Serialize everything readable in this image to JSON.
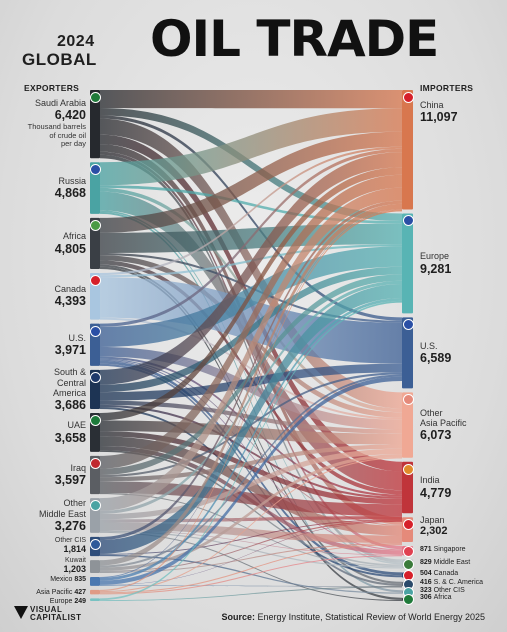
{
  "title": {
    "year": "2024",
    "global": "GLOBAL",
    "main": "OIL TRADE"
  },
  "columns": {
    "exporters": "EXPORTERS",
    "importers": "IMPORTERS"
  },
  "unit_note": "Thousand barrels of crude oil per day",
  "exporters": [
    {
      "name": "Saudi Arabia",
      "value": "6,420",
      "num": 6420,
      "color": "#26292e"
    },
    {
      "name": "Russia",
      "value": "4,868",
      "num": 4868,
      "color": "#4aa3a3"
    },
    {
      "name": "Africa",
      "value": "4,805",
      "num": 4805,
      "color": "#3a3f45"
    },
    {
      "name": "Canada",
      "value": "4,393",
      "num": 4393,
      "color": "#a9c6e0"
    },
    {
      "name": "U.S.",
      "value": "3,971",
      "num": 3971,
      "color": "#3c5f95"
    },
    {
      "name": "South & Central America",
      "value": "3,686",
      "num": 3686,
      "color": "#1d3454"
    },
    {
      "name": "UAE",
      "value": "3,658",
      "num": 3658,
      "color": "#2a2f35"
    },
    {
      "name": "Iraq",
      "value": "3,597",
      "num": 3597,
      "color": "#5b5e63"
    },
    {
      "name": "Other Middle East",
      "value": "3,276",
      "num": 3276,
      "color": "#9aa1a8"
    },
    {
      "name": "Other CIS",
      "value": "1,814",
      "num": 1814,
      "color": "#2e4d7a"
    },
    {
      "name": "Kuwait",
      "value": "1,203",
      "num": 1203,
      "color": "#8e9398"
    },
    {
      "name": "Mexico",
      "value": "835",
      "num": 835,
      "color": "#4a78b0"
    },
    {
      "name": "Asia Pacific",
      "value": "427",
      "num": 427,
      "color": "#e09a85"
    },
    {
      "name": "Europe",
      "value": "249",
      "num": 249,
      "color": "#78c2c2"
    }
  ],
  "importers": [
    {
      "name": "China",
      "value": "11,097",
      "num": 11097,
      "color": "#d8774e"
    },
    {
      "name": "Europe",
      "value": "9,281",
      "num": 9281,
      "color": "#58b4b4"
    },
    {
      "name": "U.S.",
      "value": "6,589",
      "num": 6589,
      "color": "#3c5f95"
    },
    {
      "name": "Other Asia Pacific",
      "value": "6,073",
      "num": 6073,
      "color": "#f0a894"
    },
    {
      "name": "India",
      "value": "4,779",
      "num": 4779,
      "color": "#c0343a"
    },
    {
      "name": "Japan",
      "value": "2,302",
      "num": 2302,
      "color": "#e58a7a"
    },
    {
      "name": "Singapore",
      "value": "871",
      "num": 871,
      "color": "#e7788a"
    },
    {
      "name": "Middle East",
      "value": "829",
      "num": 829,
      "color": "#b9c2c8"
    },
    {
      "name": "Canada",
      "value": "504",
      "num": 504,
      "color": "#2e4d7a"
    },
    {
      "name": "S. & C. America",
      "value": "416",
      "num": 416,
      "color": "#6a7078"
    },
    {
      "name": "Other CIS",
      "value": "323",
      "num": 323,
      "color": "#8a9aa8"
    },
    {
      "name": "Africa",
      "value": "306",
      "num": 306,
      "color": "#3a3f45"
    }
  ],
  "flows": [
    [
      0,
      0,
      1700
    ],
    [
      0,
      1,
      700
    ],
    [
      0,
      3,
      1500
    ],
    [
      0,
      4,
      900
    ],
    [
      0,
      5,
      700
    ],
    [
      0,
      2,
      300
    ],
    [
      0,
      6,
      300
    ],
    [
      0,
      7,
      320
    ],
    [
      1,
      0,
      2170
    ],
    [
      1,
      4,
      1750
    ],
    [
      1,
      1,
      250
    ],
    [
      1,
      3,
      350
    ],
    [
      1,
      10,
      198
    ],
    [
      1,
      7,
      150
    ],
    [
      2,
      1,
      1900
    ],
    [
      2,
      0,
      1400
    ],
    [
      2,
      4,
      400
    ],
    [
      2,
      3,
      500
    ],
    [
      2,
      2,
      200
    ],
    [
      2,
      11,
      205
    ],
    [
      2,
      9,
      200
    ],
    [
      3,
      2,
      3800
    ],
    [
      3,
      0,
      200
    ],
    [
      3,
      1,
      200
    ],
    [
      3,
      3,
      193
    ],
    [
      4,
      1,
      1900
    ],
    [
      4,
      3,
      900
    ],
    [
      4,
      0,
      300
    ],
    [
      4,
      4,
      200
    ],
    [
      4,
      5,
      100
    ],
    [
      4,
      8,
      271
    ],
    [
      4,
      9,
      200
    ],
    [
      4,
      6,
      100
    ],
    [
      5,
      0,
      1400
    ],
    [
      5,
      2,
      800
    ],
    [
      5,
      1,
      700
    ],
    [
      5,
      3,
      400
    ],
    [
      5,
      4,
      200
    ],
    [
      5,
      8,
      186
    ],
    [
      6,
      0,
      700
    ],
    [
      6,
      5,
      900
    ],
    [
      6,
      3,
      1000
    ],
    [
      6,
      4,
      500
    ],
    [
      6,
      6,
      400
    ],
    [
      6,
      7,
      158
    ],
    [
      7,
      0,
      1200
    ],
    [
      7,
      4,
      1100
    ],
    [
      7,
      1,
      600
    ],
    [
      7,
      3,
      397
    ],
    [
      7,
      2,
      200
    ],
    [
      7,
      7,
      100
    ],
    [
      8,
      0,
      1200
    ],
    [
      8,
      5,
      700
    ],
    [
      8,
      3,
      500
    ],
    [
      8,
      4,
      300
    ],
    [
      8,
      1,
      300
    ],
    [
      8,
      7,
      121
    ],
    [
      8,
      11,
      101
    ],
    [
      8,
      6,
      55
    ],
    [
      9,
      1,
      1300
    ],
    [
      9,
      0,
      300
    ],
    [
      9,
      10,
      125
    ],
    [
      9,
      4,
      89
    ],
    [
      10,
      0,
      500
    ],
    [
      10,
      3,
      301
    ],
    [
      10,
      2,
      200
    ],
    [
      10,
      4,
      100
    ],
    [
      10,
      5,
      102
    ],
    [
      11,
      2,
      400
    ],
    [
      11,
      1,
      270
    ],
    [
      11,
      0,
      80
    ],
    [
      11,
      4,
      40
    ],
    [
      11,
      9,
      45
    ],
    [
      12,
      0,
      127
    ],
    [
      12,
      3,
      100
    ],
    [
      12,
      5,
      100
    ],
    [
      12,
      6,
      100
    ],
    [
      13,
      1,
      161
    ],
    [
      13,
      9,
      88
    ]
  ],
  "source": {
    "label": "Source:",
    "text": "Energy Institute, Statistical Review of World Energy 2025"
  },
  "logo": {
    "line1": "VISUAL",
    "line2": "CAPITALIST"
  }
}
